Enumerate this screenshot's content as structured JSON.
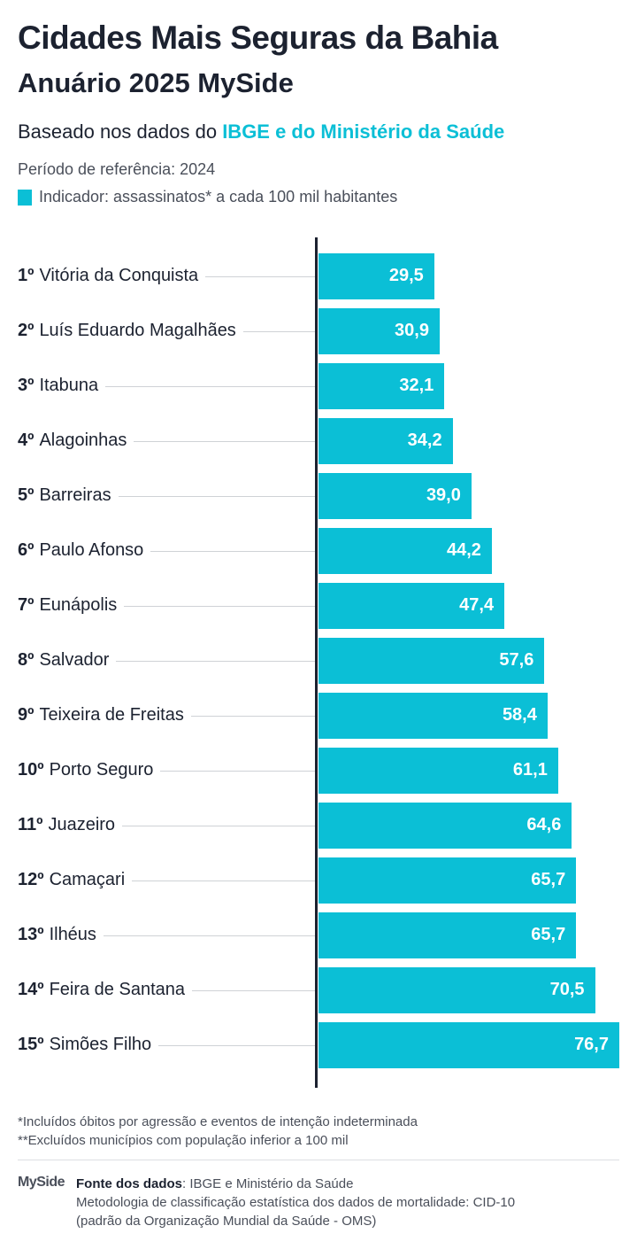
{
  "header": {
    "title": "Cidades Mais Seguras da Bahia",
    "subtitle": "Anuário 2025 MySide",
    "based_prefix": "Baseado nos dados do ",
    "based_highlight": "IBGE e do Ministério da Saúde",
    "period": "Período de referência: 2024",
    "indicator": "Indicador: assassinatos* a cada 100 mil habitantes"
  },
  "colors": {
    "accent": "#0bbfd6",
    "text": "#1c2230"
  },
  "chart_data": {
    "type": "bar",
    "orientation": "horizontal",
    "grid": false,
    "xlim": [
      0,
      76.7
    ],
    "categories": [
      {
        "rank": "1º",
        "name": "Vitória da Conquista"
      },
      {
        "rank": "2º",
        "name": "Luís Eduardo Magalhães"
      },
      {
        "rank": "3º",
        "name": "Itabuna"
      },
      {
        "rank": "4º",
        "name": "Alagoinhas"
      },
      {
        "rank": "5º",
        "name": "Barreiras"
      },
      {
        "rank": "6º",
        "name": "Paulo Afonso"
      },
      {
        "rank": "7º",
        "name": "Eunápolis"
      },
      {
        "rank": "8º",
        "name": "Salvador"
      },
      {
        "rank": "9º",
        "name": "Teixeira de Freitas"
      },
      {
        "rank": "10º",
        "name": "Porto Seguro"
      },
      {
        "rank": "11º",
        "name": "Juazeiro"
      },
      {
        "rank": "12º",
        "name": "Camaçari"
      },
      {
        "rank": "13º",
        "name": "Ilhéus"
      },
      {
        "rank": "14º",
        "name": "Feira de Santana"
      },
      {
        "rank": "15º",
        "name": "Simões Filho"
      }
    ],
    "values": [
      29.5,
      30.9,
      32.1,
      34.2,
      39.0,
      44.2,
      47.4,
      57.6,
      58.4,
      61.1,
      64.6,
      65.7,
      65.7,
      70.5,
      76.7
    ],
    "value_labels": [
      "29,5",
      "30,9",
      "32,1",
      "34,2",
      "39,0",
      "44,2",
      "47,4",
      "57,6",
      "58,4",
      "61,1",
      "64,6",
      "65,7",
      "65,7",
      "70,5",
      "76,7"
    ]
  },
  "footer": {
    "note1": "*Incluídos óbitos por agressão e eventos de intenção indeterminada",
    "note2": "**Excluídos municípios com população inferior a 100 mil",
    "logo": "MySide",
    "source_label": "Fonte dos dados",
    "source_text": ": IBGE e Ministério da Saúde",
    "method1": "Metodologia de classificação estatística dos dados de mortalidade: CID-10",
    "method2": "(padrão da Organização Mundial da Saúde - OMS)"
  }
}
